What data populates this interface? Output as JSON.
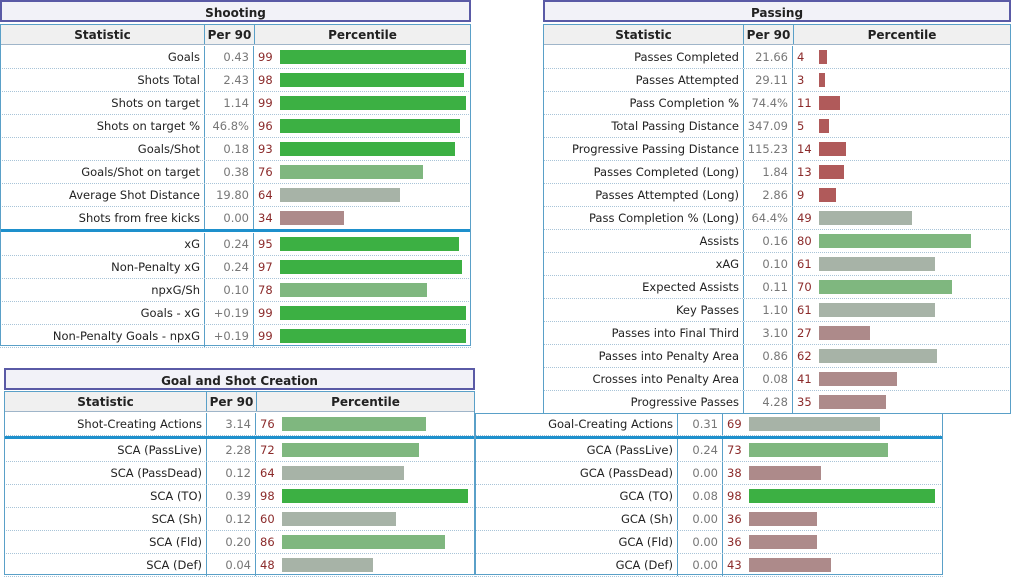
{
  "colors": {
    "elite": "#3cb043",
    "good": "#7fb77f",
    "avg": "#a7b3a7",
    "low": "#ad8a8a",
    "poor": "#b05a5a",
    "accent": "#1e90cc"
  },
  "shooting": {
    "title": "Shooting",
    "headers": {
      "stat": "Statistic",
      "per90": "Per 90",
      "pct": "Percentile"
    },
    "rows": [
      {
        "label": "Goals",
        "per90": "0.43",
        "pct": 99
      },
      {
        "label": "Shots Total",
        "per90": "2.43",
        "pct": 98
      },
      {
        "label": "Shots on target",
        "per90": "1.14",
        "pct": 99
      },
      {
        "label": "Shots on target %",
        "per90": "46.8%",
        "pct": 96
      },
      {
        "label": "Goals/Shot",
        "per90": "0.18",
        "pct": 93
      },
      {
        "label": "Goals/Shot on target",
        "per90": "0.38",
        "pct": 76
      },
      {
        "label": "Average Shot Distance",
        "per90": "19.80",
        "pct": 64
      },
      {
        "label": "Shots from free kicks",
        "per90": "0.00",
        "pct": 34
      },
      {
        "label": "xG",
        "per90": "0.24",
        "pct": 95
      },
      {
        "label": "Non-Penalty xG",
        "per90": "0.24",
        "pct": 97
      },
      {
        "label": "npxG/Sh",
        "per90": "0.10",
        "pct": 78
      },
      {
        "label": "Goals - xG",
        "per90": "+0.19",
        "pct": 99
      },
      {
        "label": "Non-Penalty Goals - npxG",
        "per90": "+0.19",
        "pct": 99
      }
    ]
  },
  "passing": {
    "title": "Passing",
    "headers": {
      "stat": "Statistic",
      "per90": "Per 90",
      "pct": "Percentile"
    },
    "rows": [
      {
        "label": "Passes Completed",
        "per90": "21.66",
        "pct": 4
      },
      {
        "label": "Passes Attempted",
        "per90": "29.11",
        "pct": 3
      },
      {
        "label": "Pass Completion %",
        "per90": "74.4%",
        "pct": 11
      },
      {
        "label": "Total Passing Distance",
        "per90": "347.09",
        "pct": 5
      },
      {
        "label": "Progressive Passing Distance",
        "per90": "115.23",
        "pct": 14
      },
      {
        "label": "Passes Completed (Long)",
        "per90": "1.84",
        "pct": 13
      },
      {
        "label": "Passes Attempted (Long)",
        "per90": "2.86",
        "pct": 9
      },
      {
        "label": "Pass Completion % (Long)",
        "per90": "64.4%",
        "pct": 49
      },
      {
        "label": "Assists",
        "per90": "0.16",
        "pct": 80
      },
      {
        "label": "xAG",
        "per90": "0.10",
        "pct": 61
      },
      {
        "label": "Expected Assists",
        "per90": "0.11",
        "pct": 70
      },
      {
        "label": "Key Passes",
        "per90": "1.10",
        "pct": 61
      },
      {
        "label": "Passes into Final Third",
        "per90": "3.10",
        "pct": 27
      },
      {
        "label": "Passes into Penalty Area",
        "per90": "0.86",
        "pct": 62
      },
      {
        "label": "Crosses into Penalty Area",
        "per90": "0.08",
        "pct": 41
      },
      {
        "label": "Progressive Passes",
        "per90": "4.28",
        "pct": 35
      }
    ]
  },
  "gsc": {
    "title": "Goal and Shot Creation",
    "headers": {
      "stat": "Statistic",
      "per90": "Per 90",
      "pct": "Percentile"
    },
    "left": [
      {
        "label": "Shot-Creating Actions",
        "per90": "3.14",
        "pct": 76
      },
      {
        "label": "SCA (PassLive)",
        "per90": "2.28",
        "pct": 72
      },
      {
        "label": "SCA (PassDead)",
        "per90": "0.12",
        "pct": 64
      },
      {
        "label": "SCA (TO)",
        "per90": "0.39",
        "pct": 98
      },
      {
        "label": "SCA (Sh)",
        "per90": "0.12",
        "pct": 60
      },
      {
        "label": "SCA (Fld)",
        "per90": "0.20",
        "pct": 86
      },
      {
        "label": "SCA (Def)",
        "per90": "0.04",
        "pct": 48
      }
    ],
    "right": [
      {
        "label": "Goal-Creating Actions",
        "per90": "0.31",
        "pct": 69
      },
      {
        "label": "GCA (PassLive)",
        "per90": "0.24",
        "pct": 73
      },
      {
        "label": "GCA (PassDead)",
        "per90": "0.00",
        "pct": 38
      },
      {
        "label": "GCA (TO)",
        "per90": "0.08",
        "pct": 98
      },
      {
        "label": "GCA (Sh)",
        "per90": "0.00",
        "pct": 36
      },
      {
        "label": "GCA (Fld)",
        "per90": "0.00",
        "pct": 36
      },
      {
        "label": "GCA (Def)",
        "per90": "0.00",
        "pct": 43
      }
    ]
  }
}
